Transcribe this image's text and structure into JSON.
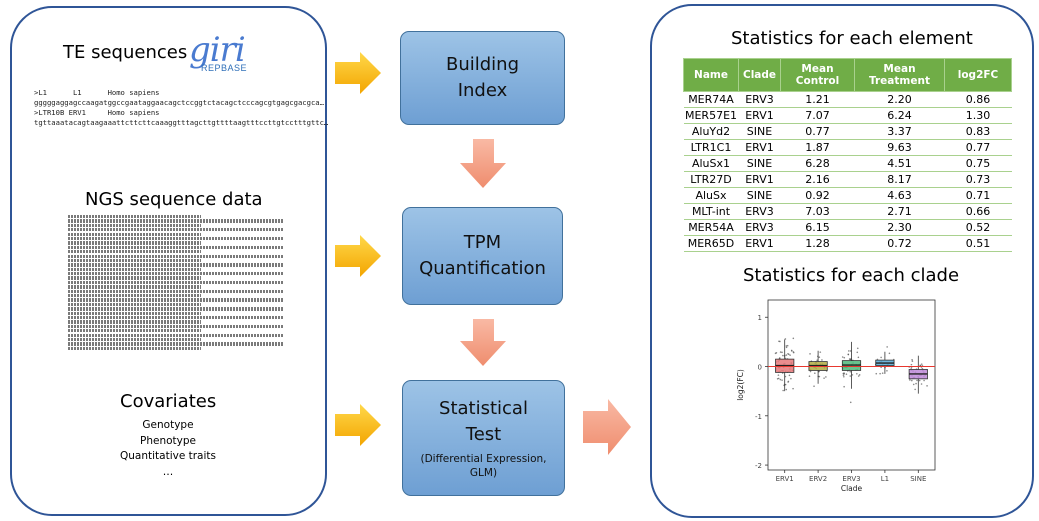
{
  "left_panel": {
    "te_title": "TE sequences",
    "logo_text": "giri",
    "logo_sub": "REPBASE",
    "te_lines": [
      ">L1      L1      Homo sapiens",
      "gggggaggagccaagatggccgaataggaacagctccggtctacagctcccagcgtgagcgacgca…",
      ">LTR10B ERV1     Homo sapiens",
      "tgttaaatacagtaagaaattcttcttcaaaggtttagcttgttttaagtttccttgtcctttgttc…"
    ],
    "ngs_title": "NGS sequence data",
    "covariates_title": "Covariates",
    "covariates": [
      "Genotype",
      "Phenotype",
      "Quantitative traits",
      "…"
    ]
  },
  "pipeline": {
    "building_index": [
      "Building",
      "Index"
    ],
    "tpm": [
      "TPM",
      "Quantification"
    ],
    "stat_test": [
      "Statistical",
      "Test"
    ],
    "stat_test_sub": [
      "(Differential Expression,",
      "GLM)"
    ]
  },
  "right_panel": {
    "element_title": "Statistics for each element",
    "clade_title": "Statistics for each clade",
    "table_headers": [
      "Name",
      "Clade",
      "Mean Control",
      "Mean Treatment",
      "log2FC"
    ],
    "table_rows": [
      [
        "MER74A",
        "ERV3",
        "1.21",
        "2.20",
        "0.86"
      ],
      [
        "MER57E1",
        "ERV1",
        "7.07",
        "6.24",
        "1.30"
      ],
      [
        "AluYd2",
        "SINE",
        "0.77",
        "3.37",
        "0.83"
      ],
      [
        "LTR1C1",
        "ERV1",
        "1.87",
        "9.63",
        "0.77"
      ],
      [
        "AluSx1",
        "SINE",
        "6.28",
        "4.51",
        "0.75"
      ],
      [
        "LTR27D",
        "ERV1",
        "2.16",
        "8.17",
        "0.73"
      ],
      [
        "AluSx",
        "SINE",
        "0.92",
        "4.63",
        "0.71"
      ],
      [
        "MLT-int",
        "ERV3",
        "7.03",
        "2.71",
        "0.66"
      ],
      [
        "MER54A",
        "ERV3",
        "6.15",
        "2.30",
        "0.52"
      ],
      [
        "MER65D",
        "ERV1",
        "1.28",
        "0.72",
        "0.51"
      ]
    ]
  },
  "chart_data": {
    "type": "box",
    "xlabel": "Clade",
    "ylabel": "log2(FC)",
    "ylim": [
      -2.1,
      1.35
    ],
    "yticks": [
      1,
      0,
      -1,
      -2
    ],
    "reference_line": 0,
    "reference_line_color": "#e8382f",
    "categories": [
      "ERV1",
      "ERV2",
      "ERV3",
      "L1",
      "SINE"
    ],
    "colors": [
      "#e8797a",
      "#b1ad43",
      "#4fb87a",
      "#56a9d6",
      "#c08bd9"
    ],
    "boxes": [
      {
        "name": "ERV1",
        "q1": -0.12,
        "median": 0.02,
        "q3": 0.15,
        "whisker_low": -0.5,
        "whisker_high": 0.55
      },
      {
        "name": "ERV2",
        "q1": -0.08,
        "median": 0.02,
        "q3": 0.1,
        "whisker_low": -0.35,
        "whisker_high": 0.32
      },
      {
        "name": "ERV3",
        "q1": -0.08,
        "median": 0.03,
        "q3": 0.12,
        "whisker_low": -0.45,
        "whisker_high": 0.5
      },
      {
        "name": "L1",
        "q1": 0.02,
        "median": 0.07,
        "q3": 0.13,
        "whisker_low": -0.15,
        "whisker_high": 0.3
      },
      {
        "name": "SINE",
        "q1": -0.25,
        "median": -0.15,
        "q3": -0.06,
        "whisker_low": -0.55,
        "whisker_high": 0.22
      }
    ]
  }
}
